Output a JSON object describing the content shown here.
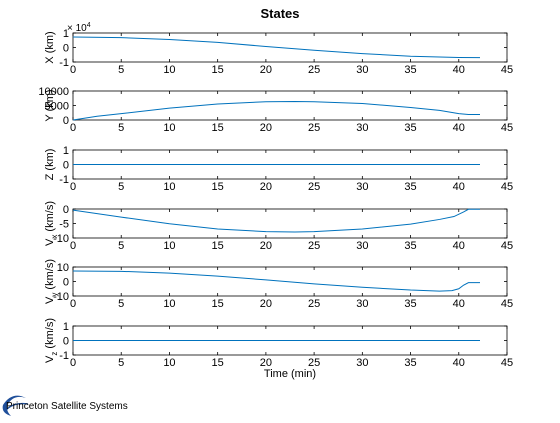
{
  "figure": {
    "title": "States",
    "brand": "Princeton Satellite Systems"
  },
  "chart_data": [
    {
      "type": "line",
      "ylabel": "X (km)",
      "xlabel": "",
      "xlim": [
        0,
        45
      ],
      "ylim": [
        -1,
        1
      ],
      "y_multiplier": "× 10",
      "y_multiplier_exp": "4",
      "xticks": [
        0,
        5,
        10,
        15,
        20,
        25,
        30,
        35,
        40,
        45
      ],
      "yticks": [
        -1,
        0,
        1
      ],
      "series": [
        {
          "color": "#0072bd",
          "x": [
            0,
            5,
            10,
            15,
            20,
            25,
            30,
            35,
            40,
            42.2
          ],
          "y": [
            0.72,
            0.68,
            0.55,
            0.35,
            0.07,
            -0.19,
            -0.42,
            -0.6,
            -0.69,
            -0.7
          ]
        }
      ]
    },
    {
      "type": "line",
      "ylabel": "Y (km)",
      "xlabel": "",
      "xlim": [
        0,
        45
      ],
      "ylim": [
        0,
        10000
      ],
      "xticks": [
        0,
        5,
        10,
        15,
        20,
        25,
        30,
        35,
        40,
        45
      ],
      "yticks": [
        0,
        5000,
        10000
      ],
      "series": [
        {
          "color": "#0072bd",
          "x": [
            0,
            2.5,
            5,
            10,
            15,
            20,
            23,
            25,
            30,
            35,
            38,
            40,
            41,
            42.2
          ],
          "y": [
            0,
            1300,
            2200,
            4100,
            5500,
            6300,
            6400,
            6300,
            5700,
            4300,
            3300,
            2200,
            1900,
            1900
          ]
        }
      ]
    },
    {
      "type": "line",
      "ylabel": "Z (km)",
      "xlabel": "",
      "xlim": [
        0,
        45
      ],
      "ylim": [
        -1,
        1
      ],
      "xticks": [
        0,
        5,
        10,
        15,
        20,
        25,
        30,
        35,
        40,
        45
      ],
      "yticks": [
        -1,
        0,
        1
      ],
      "series": [
        {
          "color": "#0072bd",
          "x": [
            0,
            42.2
          ],
          "y": [
            0,
            0
          ]
        }
      ]
    },
    {
      "type": "line",
      "ylabel": "V",
      "ylabel_sub": "x",
      "ylabel_tail": "(km/s)",
      "xlabel": "",
      "xlim": [
        0,
        45
      ],
      "ylim": [
        -10,
        0
      ],
      "xticks": [
        0,
        5,
        10,
        15,
        20,
        25,
        30,
        35,
        40,
        45
      ],
      "yticks": [
        -10,
        -5,
        0
      ],
      "series": [
        {
          "color": "#0072bd",
          "x": [
            0,
            5,
            10,
            15,
            20,
            23,
            25,
            30,
            35,
            38,
            39.5,
            40.5,
            41,
            42.2
          ],
          "y": [
            -0.4,
            -2.8,
            -5.1,
            -6.9,
            -7.8,
            -7.95,
            -7.8,
            -6.9,
            -5.2,
            -3.6,
            -2.6,
            -1.0,
            -0.1,
            -0.1
          ]
        }
      ]
    },
    {
      "type": "line",
      "ylabel": "V",
      "ylabel_sub": "y",
      "ylabel_tail": "(km/s)",
      "xlabel": "",
      "xlim": [
        0,
        45
      ],
      "ylim": [
        -10,
        10
      ],
      "xticks": [
        0,
        5,
        10,
        15,
        20,
        25,
        30,
        35,
        40,
        45
      ],
      "yticks": [
        -10,
        0,
        10
      ],
      "series": [
        {
          "color": "#0072bd",
          "x": [
            0,
            5,
            10,
            15,
            20,
            25,
            30,
            35,
            38,
            39.3,
            40,
            40.5,
            41,
            42.2
          ],
          "y": [
            7.2,
            7.0,
            5.8,
            3.7,
            1.1,
            -1.6,
            -4.0,
            -5.9,
            -6.6,
            -6.3,
            -5.0,
            -2.5,
            -0.8,
            -0.8
          ]
        }
      ]
    },
    {
      "type": "line",
      "ylabel": "V",
      "ylabel_sub": "z",
      "ylabel_tail": "(km/s)",
      "xlabel": "Time (min)",
      "xlim": [
        0,
        45
      ],
      "ylim": [
        -1,
        1
      ],
      "xticks": [
        0,
        5,
        10,
        15,
        20,
        25,
        30,
        35,
        40,
        45
      ],
      "yticks": [
        -1,
        0,
        1
      ],
      "series": [
        {
          "color": "#0072bd",
          "x": [
            0,
            42.2
          ],
          "y": [
            0,
            0
          ]
        }
      ]
    }
  ]
}
